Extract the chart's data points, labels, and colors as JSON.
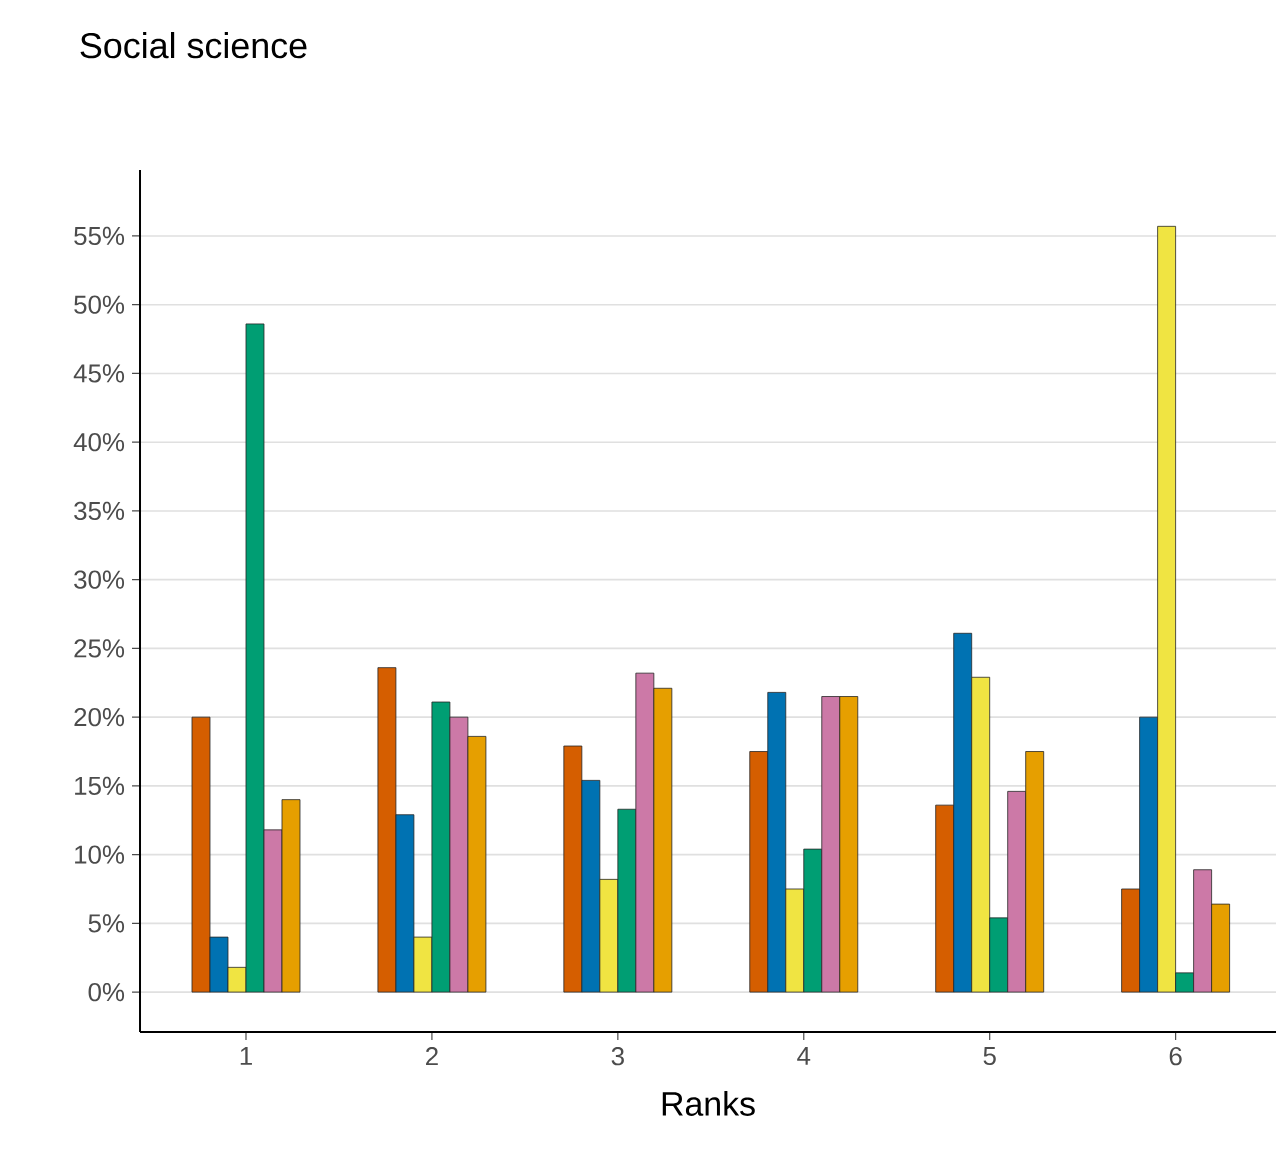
{
  "chart_data": {
    "type": "bar",
    "title": "Social science",
    "xlabel": "Ranks",
    "categories": [
      "1",
      "2",
      "3",
      "4",
      "5",
      "6"
    ],
    "series": [
      {
        "color": "#d55e00",
        "values": [
          20,
          23.6,
          17.9,
          17.5,
          13.6,
          7.5
        ]
      },
      {
        "color": "#0072b2",
        "values": [
          4,
          12.9,
          15.4,
          21.8,
          26.1,
          20
        ]
      },
      {
        "color": "#f0e442",
        "values": [
          1.8,
          4,
          8.2,
          7.5,
          22.9,
          55.7
        ]
      },
      {
        "color": "#009e73",
        "values": [
          48.6,
          21.1,
          13.3,
          10.4,
          5.4,
          1.4
        ]
      },
      {
        "color": "#cc79a7",
        "values": [
          11.8,
          20,
          23.2,
          21.5,
          14.6,
          8.9
        ]
      },
      {
        "color": "#e69f00",
        "values": [
          14,
          18.6,
          22.1,
          21.5,
          17.5,
          6.4
        ]
      }
    ],
    "ylim": [
      -2.9,
      59.8
    ],
    "yticks": [
      {
        "value": 0,
        "label": "0%"
      },
      {
        "value": 5,
        "label": "5%"
      },
      {
        "value": 10,
        "label": "10%"
      },
      {
        "value": 15,
        "label": "15%"
      },
      {
        "value": 20,
        "label": "20%"
      },
      {
        "value": 25,
        "label": "25%"
      },
      {
        "value": 30,
        "label": "30%"
      },
      {
        "value": 35,
        "label": "35%"
      },
      {
        "value": 40,
        "label": "40%"
      },
      {
        "value": 45,
        "label": "45%"
      },
      {
        "value": 50,
        "label": "50%"
      },
      {
        "value": 55,
        "label": "55%"
      }
    ],
    "grid": "y"
  }
}
